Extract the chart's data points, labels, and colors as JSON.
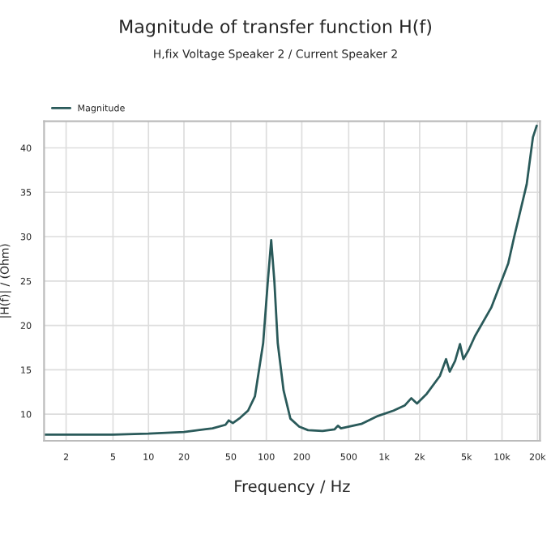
{
  "chart_data": {
    "type": "line",
    "title": "Magnitude of transfer function H(f)",
    "subtitle": "H,fix Voltage Speaker 2 / Current Speaker 2",
    "xlabel": "Frequency / Hz",
    "ylabel": "|H(f)| / (Ohm)",
    "log": "x",
    "grid": true,
    "legend": "top left",
    "xlim": [
      1.3,
      21000
    ],
    "xticks": [
      2,
      5,
      10,
      20,
      50,
      100,
      200,
      500,
      {
        "value": 1000,
        "label": "1k"
      },
      {
        "value": 2000,
        "label": "2k"
      },
      {
        "value": 5000,
        "label": "5k"
      },
      {
        "value": 10000,
        "label": "10k"
      },
      {
        "value": 20000,
        "label": "20k"
      }
    ],
    "ylim": [
      7,
      43
    ],
    "yticks": [
      10,
      15,
      20,
      25,
      30,
      35,
      40
    ],
    "series": [
      {
        "name": "Magnitude",
        "color": "#2a5a5a",
        "x": [
          1.3,
          5,
          10,
          20,
          35,
          45,
          48,
          52,
          60,
          70,
          80,
          94,
          103,
          110,
          117,
          125,
          140,
          160,
          190,
          226,
          300,
          380,
          405,
          430,
          640,
          885,
          1200,
          1500,
          1700,
          1900,
          2300,
          2970,
          3350,
          3600,
          4000,
          4400,
          4700,
          5200,
          5900,
          8100,
          11300,
          12700,
          16200,
          18300,
          19700
        ],
        "values": [
          7.7,
          7.7,
          7.8,
          8.0,
          8.4,
          8.8,
          9.3,
          9.0,
          9.6,
          10.4,
          12.0,
          18.0,
          25.0,
          29.6,
          25.0,
          18.0,
          12.7,
          9.5,
          8.6,
          8.2,
          8.1,
          8.3,
          8.7,
          8.4,
          8.9,
          9.8,
          10.4,
          11.0,
          11.8,
          11.2,
          12.3,
          14.3,
          16.2,
          14.8,
          16.0,
          17.9,
          16.2,
          17.2,
          18.8,
          22.0,
          27.0,
          30.0,
          35.9,
          41.2,
          42.5
        ]
      }
    ]
  }
}
